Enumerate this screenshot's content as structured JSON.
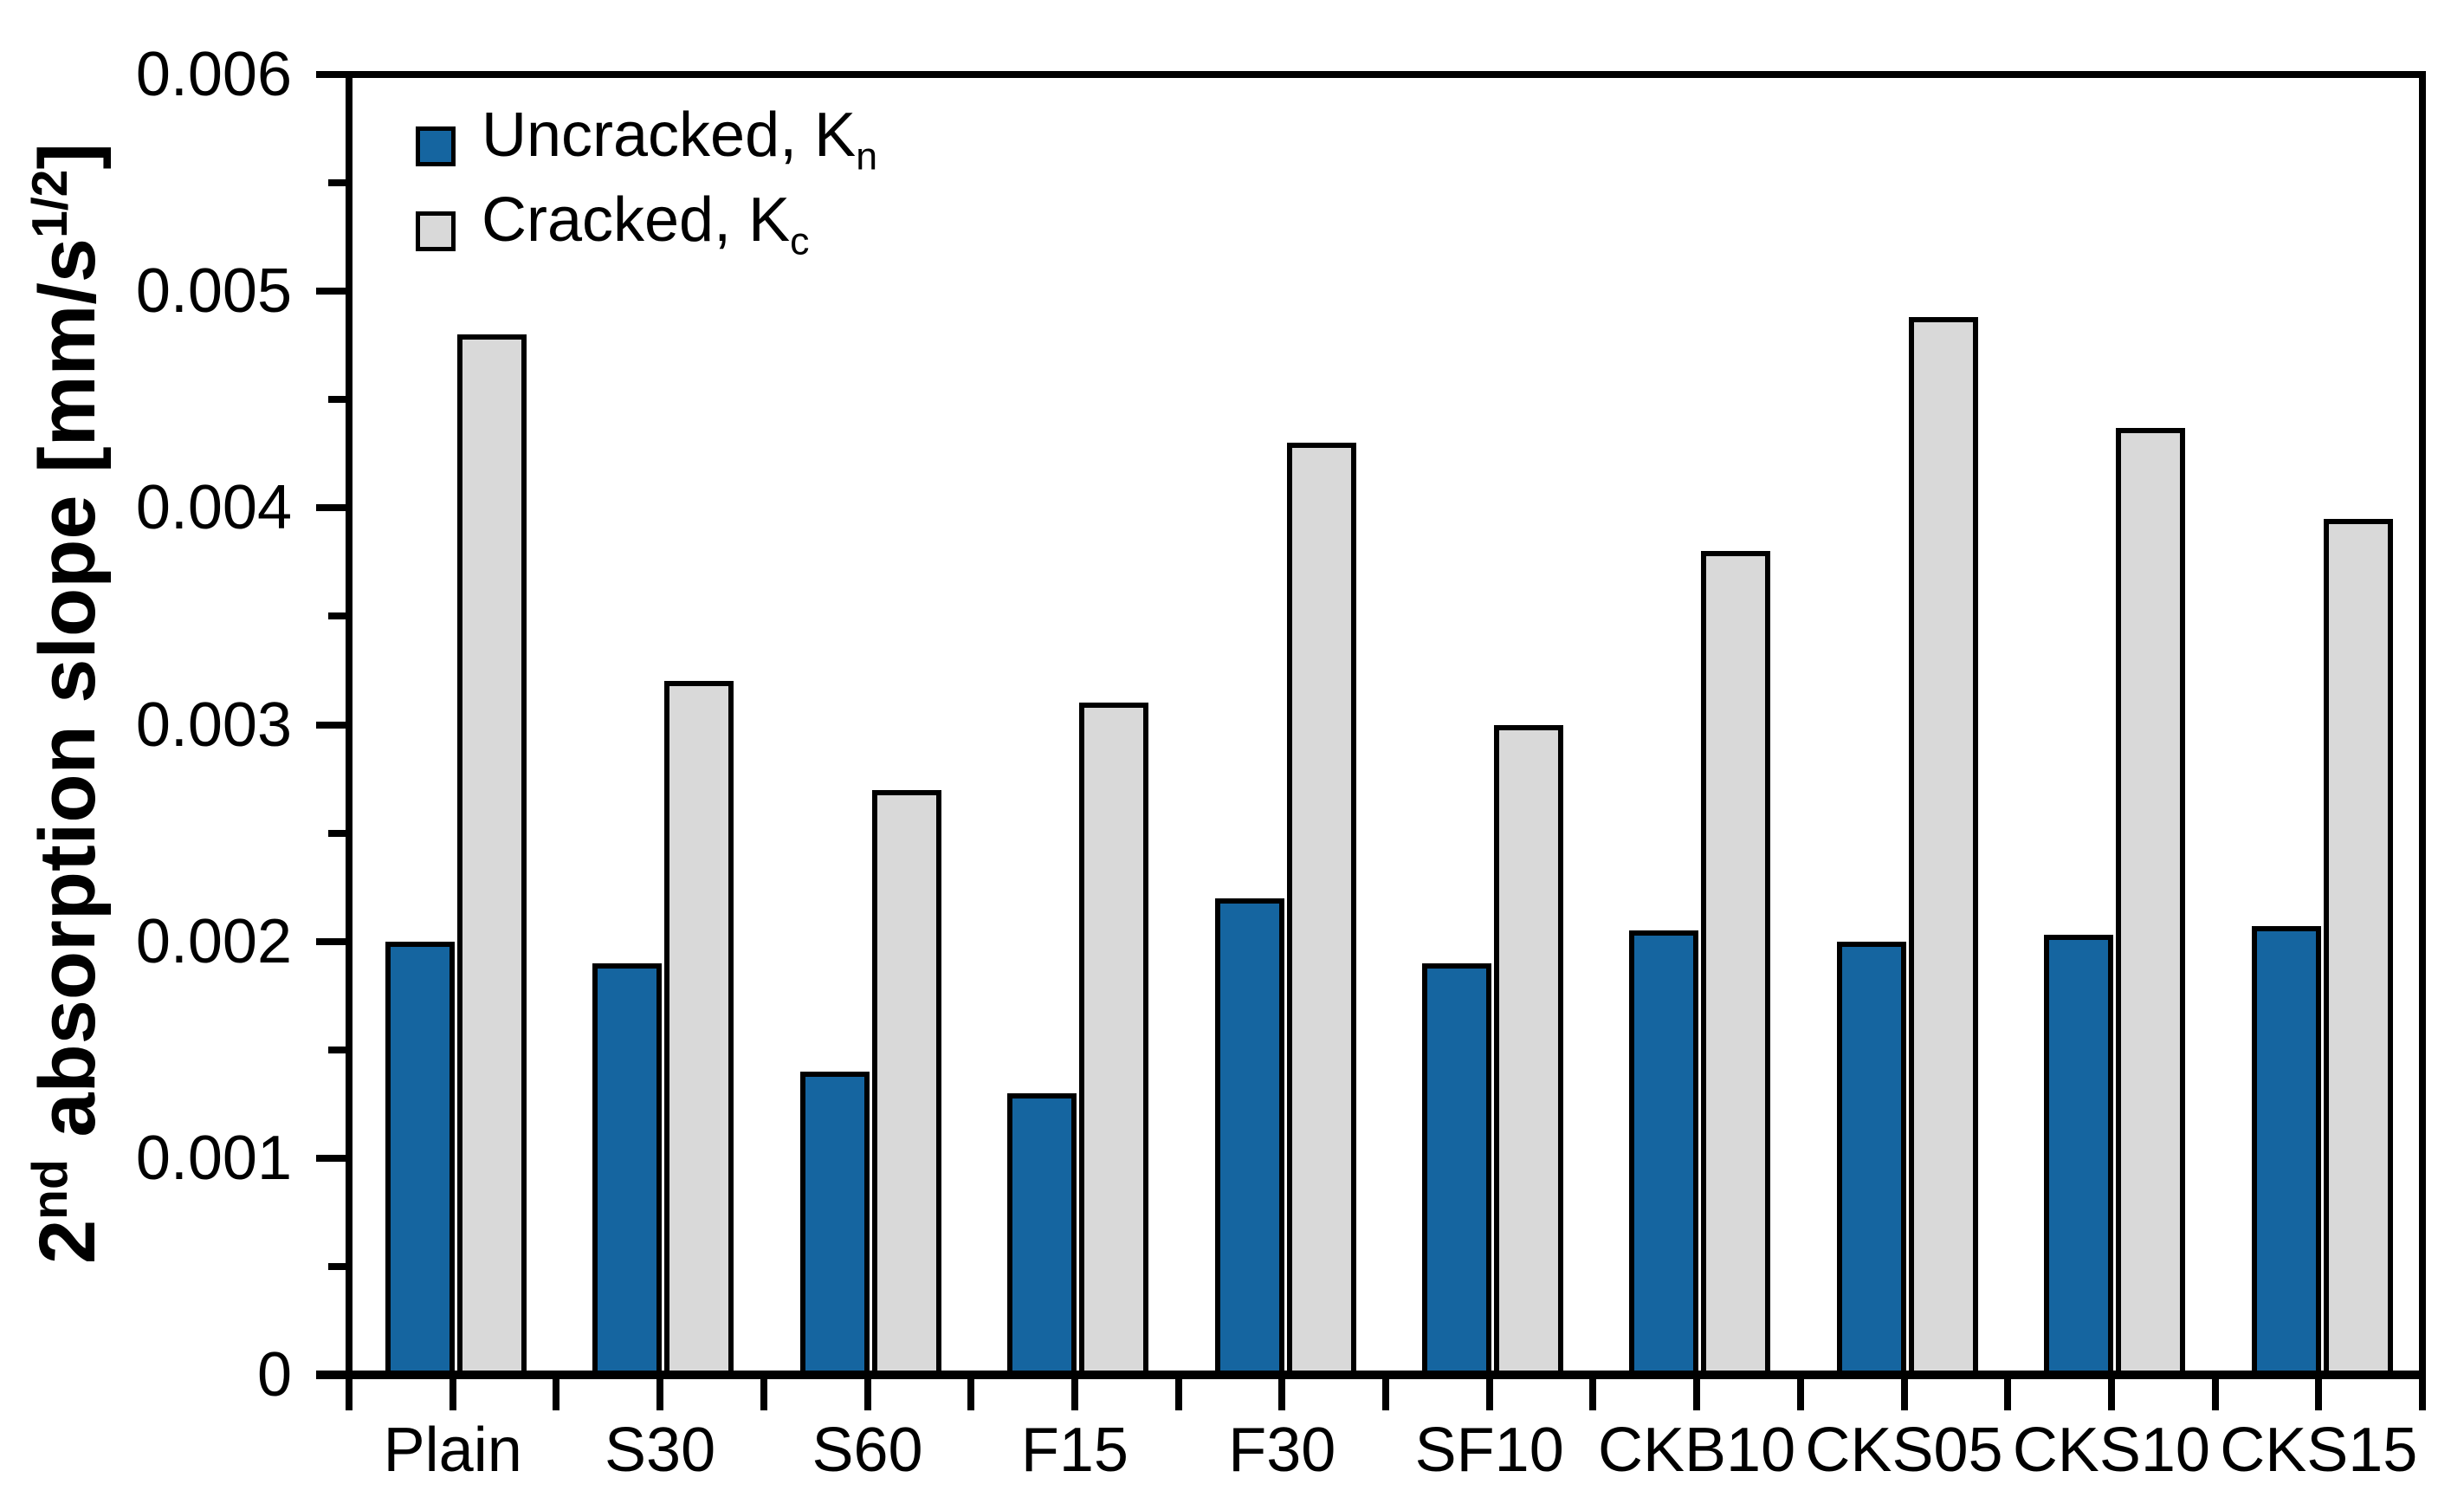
{
  "chart_data": {
    "type": "bar",
    "title": "",
    "categories": [
      "Plain",
      "S30",
      "S60",
      "F15",
      "F30",
      "SF10",
      "CKB10",
      "CKS05",
      "CKS10",
      "CKS15"
    ],
    "series": [
      {
        "name_text": "Uncracked, K",
        "name_sub": "n",
        "color": "#1565A0",
        "values": [
          0.002,
          0.0019,
          0.0014,
          0.0013,
          0.0022,
          0.0019,
          0.00205,
          0.002,
          0.00203,
          0.00207
        ]
      },
      {
        "name_text": "Cracked, K",
        "name_sub": "c",
        "color": "#D9D9D9",
        "values": [
          0.0048,
          0.0032,
          0.0027,
          0.0031,
          0.0043,
          0.003,
          0.0038,
          0.00488,
          0.00437,
          0.00395
        ]
      }
    ],
    "ylabel_parts": {
      "prefix": "2",
      "sup1": "nd",
      "mid": " absorption slope [mm/s",
      "sup2": "1/2",
      "suffix": "]"
    },
    "xlabel": "",
    "ylim": [
      0,
      0.006
    ],
    "yticks": [
      {
        "value": 0,
        "label": "0"
      },
      {
        "value": 0.001,
        "label": "0.001"
      },
      {
        "value": 0.002,
        "label": "0.002"
      },
      {
        "value": 0.003,
        "label": "0.003"
      },
      {
        "value": 0.004,
        "label": "0.004"
      },
      {
        "value": 0.005,
        "label": "0.005"
      },
      {
        "value": 0.006,
        "label": "0.006"
      }
    ],
    "y_minor_tick_step": 0.0005,
    "x_ticks_per_category": 2,
    "grid": false,
    "legend_position": "top-left-inside",
    "bar_outline_color": "#000000",
    "axis_color": "#000000",
    "background_color": "#FFFFFF"
  }
}
